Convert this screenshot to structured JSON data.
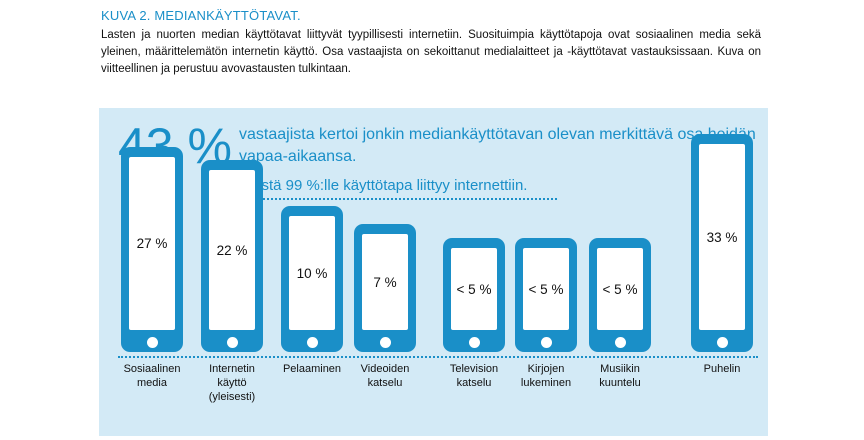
{
  "figure": {
    "title": "KUVA 2. MEDIANKÄYTTÖTAVAT.",
    "intro": "Lasten ja nuorten median käyttötavat liittyvät tyypillisesti internetiin. Suosituimpia käyttötapoja ovat sosiaalinen media sekä yleinen, määrittelemätön internetin käyttö. Osa vastaajista on sekoittanut medialaitteet ja -käyttötavat vastauksissaan. Kuva on viitteellinen ja perustuu avovastausten tulkintaan."
  },
  "headline": {
    "percent": "43 %",
    "text": "vastaajista kertoi jonkin mediankäyttötavan olevan merkittävä osa heidän vapaa-aikaansa.",
    "subtext": "Heistä 99 %:lle käyttötapa liittyy internettiin."
  },
  "colors": {
    "accent": "#1a8fc8",
    "panel": "#d3eaf6"
  },
  "chart_data": {
    "type": "bar",
    "unit": "%",
    "categories": [
      "Sosiaalinen media",
      "Internetin käyttö (yleisesti)",
      "Pelaaminen",
      "Videoiden katselu",
      "Television katselu",
      "Kirjojen lukeminen",
      "Musiikin kuuntelu",
      "Puhelin"
    ],
    "category_lines": [
      [
        "Sosiaalinen",
        "media"
      ],
      [
        "Internetin",
        "käyttö",
        "(yleisesti)"
      ],
      [
        "Pelaaminen"
      ],
      [
        "Videoiden",
        "katselu"
      ],
      [
        "Television",
        "katselu"
      ],
      [
        "Kirjojen",
        "lukeminen"
      ],
      [
        "Musiikin",
        "kuuntelu"
      ],
      [
        "Puhelin"
      ]
    ],
    "values": [
      27,
      22,
      10,
      7,
      5,
      5,
      5,
      33
    ],
    "value_labels": [
      "27 %",
      "22 %",
      "10 %",
      "7 %",
      "< 5 %",
      "< 5 %",
      "< 5 %",
      "33 %"
    ]
  }
}
